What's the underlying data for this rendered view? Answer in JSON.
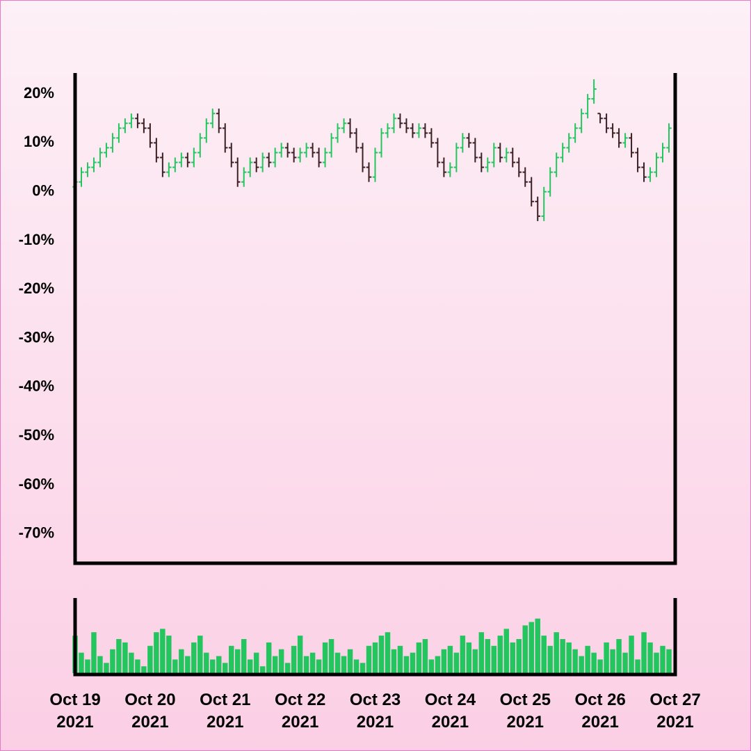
{
  "chart_data": {
    "type": "ohlc",
    "x": [
      "2021-10-19T00:00",
      "2021-10-19T02:00",
      "2021-10-19T04:00",
      "2021-10-19T06:00",
      "2021-10-19T08:00",
      "2021-10-19T10:00",
      "2021-10-19T12:00",
      "2021-10-19T14:00",
      "2021-10-19T16:00",
      "2021-10-19T18:00",
      "2021-10-19T20:00",
      "2021-10-19T22:00",
      "2021-10-20T00:00",
      "2021-10-20T02:00",
      "2021-10-20T04:00",
      "2021-10-20T06:00",
      "2021-10-20T08:00",
      "2021-10-20T10:00",
      "2021-10-20T12:00",
      "2021-10-20T14:00",
      "2021-10-20T16:00",
      "2021-10-20T18:00",
      "2021-10-20T20:00",
      "2021-10-20T22:00",
      "2021-10-21T00:00",
      "2021-10-21T02:00",
      "2021-10-21T04:00",
      "2021-10-21T06:00",
      "2021-10-21T08:00",
      "2021-10-21T10:00",
      "2021-10-21T12:00",
      "2021-10-21T14:00",
      "2021-10-21T16:00",
      "2021-10-21T18:00",
      "2021-10-21T20:00",
      "2021-10-21T22:00",
      "2021-10-22T00:00",
      "2021-10-22T02:00",
      "2021-10-22T04:00",
      "2021-10-22T06:00",
      "2021-10-22T08:00",
      "2021-10-22T10:00",
      "2021-10-22T12:00",
      "2021-10-22T14:00",
      "2021-10-22T16:00",
      "2021-10-22T18:00",
      "2021-10-22T20:00",
      "2021-10-22T22:00",
      "2021-10-23T00:00",
      "2021-10-23T02:00",
      "2021-10-23T04:00",
      "2021-10-23T06:00",
      "2021-10-23T08:00",
      "2021-10-23T10:00",
      "2021-10-23T12:00",
      "2021-10-23T14:00",
      "2021-10-23T16:00",
      "2021-10-23T18:00",
      "2021-10-23T20:00",
      "2021-10-23T22:00",
      "2021-10-24T00:00",
      "2021-10-24T02:00",
      "2021-10-24T04:00",
      "2021-10-24T06:00",
      "2021-10-24T08:00",
      "2021-10-24T10:00",
      "2021-10-24T12:00",
      "2021-10-24T14:00",
      "2021-10-24T16:00",
      "2021-10-24T18:00",
      "2021-10-24T20:00",
      "2021-10-24T22:00",
      "2021-10-25T00:00",
      "2021-10-25T02:00",
      "2021-10-25T04:00",
      "2021-10-25T06:00",
      "2021-10-25T08:00",
      "2021-10-25T10:00",
      "2021-10-25T12:00",
      "2021-10-25T14:00",
      "2021-10-25T16:00",
      "2021-10-25T18:00",
      "2021-10-25T20:00",
      "2021-10-25T22:00",
      "2021-10-26T00:00",
      "2021-10-26T02:00",
      "2021-10-26T04:00",
      "2021-10-26T06:00",
      "2021-10-26T08:00",
      "2021-10-26T10:00",
      "2021-10-26T12:00",
      "2021-10-26T14:00",
      "2021-10-26T16:00",
      "2021-10-26T18:00",
      "2021-10-26T20:00",
      "2021-10-26T22:00"
    ],
    "open": [
      1,
      2,
      4,
      5,
      6,
      8,
      9,
      11,
      13,
      14,
      15,
      14,
      13,
      10,
      7,
      4,
      5,
      6,
      7,
      6,
      8,
      11,
      14,
      16,
      13,
      9,
      6,
      2,
      4,
      6,
      5,
      7,
      6,
      8,
      9,
      8,
      7,
      8,
      9,
      8,
      6,
      8,
      11,
      13,
      14,
      12,
      9,
      5,
      3,
      8,
      12,
      13,
      15,
      14,
      13,
      12,
      13,
      12,
      10,
      6,
      4,
      5,
      9,
      11,
      10,
      7,
      5,
      6,
      9,
      7,
      8,
      6,
      4,
      2,
      -2,
      -5,
      0,
      4,
      7,
      9,
      11,
      13,
      16,
      19,
      16,
      15,
      13,
      12,
      10,
      11,
      8,
      5,
      3,
      4,
      7,
      9
    ],
    "high": [
      3,
      5,
      6,
      7,
      9,
      10,
      12,
      14,
      15,
      16,
      16,
      15,
      14,
      11,
      8,
      6,
      7,
      8,
      8,
      9,
      12,
      15,
      17,
      17,
      14,
      10,
      7,
      5,
      7,
      7,
      8,
      8,
      9,
      10,
      10,
      9,
      9,
      10,
      10,
      9,
      9,
      12,
      14,
      15,
      15,
      13,
      10,
      6,
      9,
      13,
      14,
      16,
      16,
      15,
      14,
      14,
      14,
      13,
      11,
      7,
      6,
      10,
      12,
      12,
      11,
      8,
      7,
      10,
      10,
      9,
      9,
      7,
      5,
      3,
      -1,
      1,
      5,
      8,
      10,
      12,
      14,
      17,
      20,
      23,
      16,
      16,
      14,
      13,
      12,
      12,
      9,
      6,
      5,
      8,
      10,
      14
    ],
    "low": [
      0,
      1,
      3,
      4,
      5,
      7,
      8,
      10,
      12,
      13,
      13,
      12,
      9,
      6,
      3,
      3,
      4,
      5,
      5,
      5,
      7,
      10,
      13,
      12,
      8,
      5,
      1,
      1,
      3,
      4,
      4,
      5,
      5,
      7,
      7,
      6,
      6,
      7,
      7,
      5,
      5,
      7,
      10,
      12,
      11,
      8,
      4,
      2,
      2,
      7,
      11,
      12,
      13,
      12,
      11,
      11,
      11,
      9,
      5,
      3,
      3,
      4,
      8,
      9,
      6,
      4,
      4,
      5,
      6,
      6,
      5,
      3,
      1,
      -3,
      -6,
      -6,
      -1,
      3,
      6,
      8,
      10,
      12,
      15,
      18,
      14,
      12,
      11,
      9,
      9,
      7,
      4,
      2,
      2,
      3,
      6,
      8
    ],
    "close": [
      2,
      4,
      5,
      6,
      8,
      9,
      11,
      13,
      14,
      15,
      14,
      13,
      10,
      7,
      4,
      5,
      6,
      7,
      6,
      8,
      11,
      14,
      16,
      13,
      9,
      6,
      2,
      4,
      6,
      5,
      7,
      6,
      8,
      9,
      8,
      7,
      8,
      9,
      8,
      6,
      8,
      11,
      13,
      14,
      12,
      9,
      5,
      3,
      8,
      12,
      13,
      15,
      14,
      13,
      12,
      13,
      12,
      10,
      6,
      4,
      5,
      9,
      11,
      10,
      7,
      5,
      6,
      9,
      7,
      8,
      6,
      4,
      2,
      -2,
      -5,
      0,
      4,
      7,
      9,
      11,
      13,
      16,
      19,
      21,
      15,
      13,
      12,
      10,
      11,
      8,
      5,
      3,
      4,
      7,
      9,
      13
    ],
    "up_color": "#22c55e",
    "down_color": "#3a1e22",
    "xlim": [
      "2021-10-19T00:00",
      "2021-10-27T00:00"
    ],
    "xticks": [
      {
        "value": "2021-10-19T00:00",
        "label": "Oct 19 2021"
      },
      {
        "value": "2021-10-20T00:00",
        "label": "Oct 20 2021"
      },
      {
        "value": "2021-10-21T00:00",
        "label": "Oct 21 2021"
      },
      {
        "value": "2021-10-22T00:00",
        "label": "Oct 22 2021"
      },
      {
        "value": "2021-10-23T00:00",
        "label": "Oct 23 2021"
      },
      {
        "value": "2021-10-24T00:00",
        "label": "Oct 24 2021"
      },
      {
        "value": "2021-10-25T00:00",
        "label": "Oct 25 2021"
      },
      {
        "value": "2021-10-26T00:00",
        "label": "Oct 26 2021"
      },
      {
        "value": "2021-10-27T00:00",
        "label": "Oct 27 2021"
      }
    ],
    "ylim": [
      -76,
      24
    ],
    "yticks": [
      {
        "value": 20,
        "label": "20%"
      },
      {
        "value": 10,
        "label": "10%"
      },
      {
        "value": 0,
        "label": "0%"
      },
      {
        "value": -10,
        "label": "-10%"
      },
      {
        "value": -20,
        "label": "-20%"
      },
      {
        "value": -30,
        "label": "-30%"
      },
      {
        "value": -40,
        "label": "-40%"
      },
      {
        "value": -50,
        "label": "-50%"
      },
      {
        "value": -60,
        "label": "-60%"
      },
      {
        "value": -70,
        "label": "-70%"
      }
    ],
    "volume": {
      "color": "#22c55e",
      "ylim": [
        0,
        100
      ],
      "values": [
        55,
        30,
        20,
        60,
        25,
        15,
        35,
        50,
        45,
        30,
        20,
        10,
        40,
        60,
        65,
        55,
        20,
        35,
        25,
        45,
        55,
        30,
        20,
        25,
        15,
        40,
        35,
        50,
        20,
        30,
        10,
        45,
        25,
        35,
        15,
        40,
        55,
        25,
        30,
        20,
        45,
        50,
        30,
        25,
        35,
        20,
        15,
        40,
        45,
        55,
        60,
        35,
        40,
        25,
        30,
        45,
        50,
        20,
        25,
        35,
        40,
        30,
        55,
        45,
        35,
        60,
        50,
        40,
        55,
        65,
        45,
        50,
        70,
        75,
        80,
        55,
        40,
        60,
        50,
        45,
        35,
        25,
        40,
        30,
        20,
        45,
        35,
        50,
        30,
        55,
        20,
        60,
        45,
        30,
        40,
        35
      ]
    }
  }
}
